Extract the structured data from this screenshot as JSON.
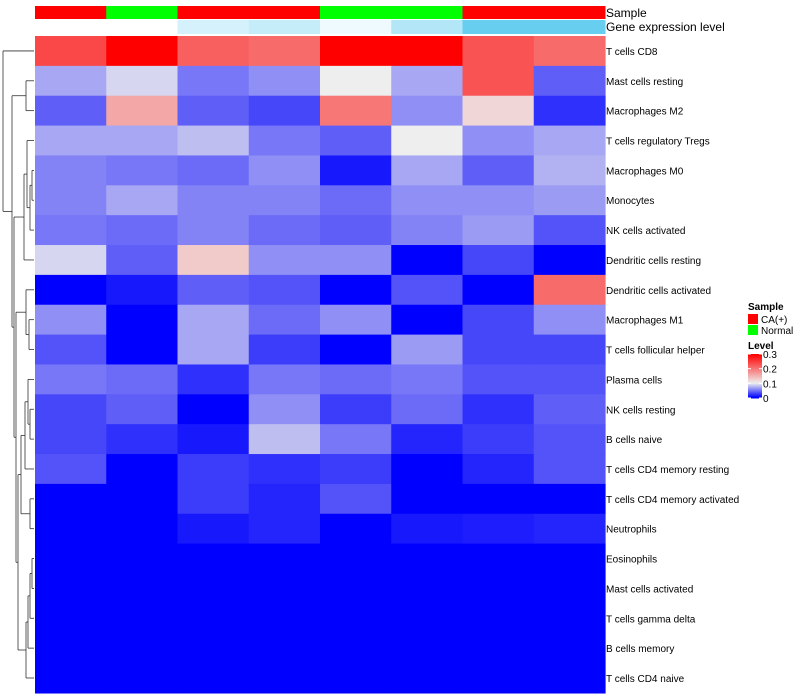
{
  "chart_data": {
    "type": "heatmap",
    "annotations": {
      "sample_label": "Sample",
      "gene_label": "Gene expression level",
      "sample_groups": [
        "CA(+)",
        "Normal",
        "CA(+)",
        "CA(+)",
        "Normal",
        "Normal",
        "CA(+)",
        "CA(+)"
      ],
      "gene_expression_levels": [
        0.0,
        0.0,
        0.25,
        0.35,
        0.1,
        0.45,
        0.9,
        0.9
      ]
    },
    "rows": [
      "T cells CD8",
      "Mast cells resting",
      "Macrophages M2",
      "T cells regulatory  Tregs",
      "Macrophages M0",
      "Monocytes",
      "NK cells activated",
      "Dendritic cells resting",
      "Dendritic cells activated",
      "Macrophages M1",
      "T cells follicular helper",
      "Plasma cells",
      "NK cells resting",
      "B cells naive",
      "T cells CD4 memory resting",
      "T cells CD4 memory activated",
      "Neutrophils",
      "Eosinophils",
      "Mast cells activated",
      "T cells gamma delta",
      "B cells memory",
      "T cells CD4 naive"
    ],
    "values": [
      [
        0.24,
        0.3,
        0.22,
        0.21,
        0.3,
        0.3,
        0.23,
        0.21
      ],
      [
        0.07,
        0.09,
        0.05,
        0.06,
        0.1,
        0.07,
        0.23,
        0.04
      ],
      [
        0.04,
        0.16,
        0.04,
        0.03,
        0.2,
        0.06,
        0.12,
        0.02
      ],
      [
        0.07,
        0.07,
        0.08,
        0.05,
        0.04,
        0.1,
        0.06,
        0.07
      ],
      [
        0.055,
        0.05,
        0.045,
        0.06,
        0.01,
        0.07,
        0.04,
        0.075
      ],
      [
        0.055,
        0.07,
        0.055,
        0.055,
        0.045,
        0.06,
        0.06,
        0.065
      ],
      [
        0.05,
        0.045,
        0.055,
        0.045,
        0.04,
        0.055,
        0.065,
        0.035
      ],
      [
        0.09,
        0.04,
        0.13,
        0.06,
        0.06,
        0.0,
        0.03,
        0.0
      ],
      [
        0.0,
        0.01,
        0.04,
        0.035,
        0.0,
        0.035,
        0.0,
        0.21
      ],
      [
        0.06,
        0.0,
        0.07,
        0.045,
        0.06,
        0.0,
        0.03,
        0.06
      ],
      [
        0.035,
        0.0,
        0.07,
        0.025,
        0.0,
        0.065,
        0.03,
        0.03
      ],
      [
        0.05,
        0.045,
        0.02,
        0.05,
        0.045,
        0.05,
        0.035,
        0.035
      ],
      [
        0.03,
        0.04,
        0.0,
        0.06,
        0.025,
        0.045,
        0.02,
        0.04
      ],
      [
        0.03,
        0.02,
        0.01,
        0.08,
        0.05,
        0.015,
        0.025,
        0.035
      ],
      [
        0.035,
        0.0,
        0.025,
        0.02,
        0.025,
        0.0,
        0.015,
        0.035
      ],
      [
        0.0,
        0.0,
        0.025,
        0.015,
        0.035,
        0.0,
        0.0,
        0.0
      ],
      [
        0.0,
        0.0,
        0.01,
        0.015,
        0.0,
        0.01,
        0.012,
        0.015
      ],
      [
        0.0,
        0.0,
        0.0,
        0.0,
        0.0,
        0.0,
        0.0,
        0.0
      ],
      [
        0.0,
        0.0,
        0.0,
        0.0,
        0.0,
        0.0,
        0.0,
        0.0
      ],
      [
        0.0,
        0.0,
        0.0,
        0.0,
        0.0,
        0.0,
        0.0,
        0.0
      ],
      [
        0.0,
        0.0,
        0.0,
        0.0,
        0.0,
        0.0,
        0.0,
        0.0
      ],
      [
        0.0,
        0.0,
        0.0,
        0.0,
        0.0,
        0.0,
        0.0,
        0.0
      ]
    ],
    "color_scale": {
      "min": 0,
      "mid": 0.1,
      "max": 0.3,
      "low": "#0000ff",
      "midColor": "#eeeeee",
      "high": "#ff0000"
    },
    "legend": {
      "sample_title": "Sample",
      "sample_items": [
        {
          "label": "CA(+)",
          "color": "#ff0000"
        },
        {
          "label": "Normal",
          "color": "#00ff00"
        }
      ],
      "level_title": "Level",
      "level_ticks": [
        {
          "label": "0.3",
          "value": 0.3
        },
        {
          "label": "0.2",
          "value": 0.2
        },
        {
          "label": "0.1",
          "value": 0.1
        },
        {
          "label": "0",
          "value": 0
        }
      ]
    },
    "gene_colors": {
      "low": "#ffffff",
      "high": "#56c8ee"
    },
    "legend_position": "right"
  }
}
